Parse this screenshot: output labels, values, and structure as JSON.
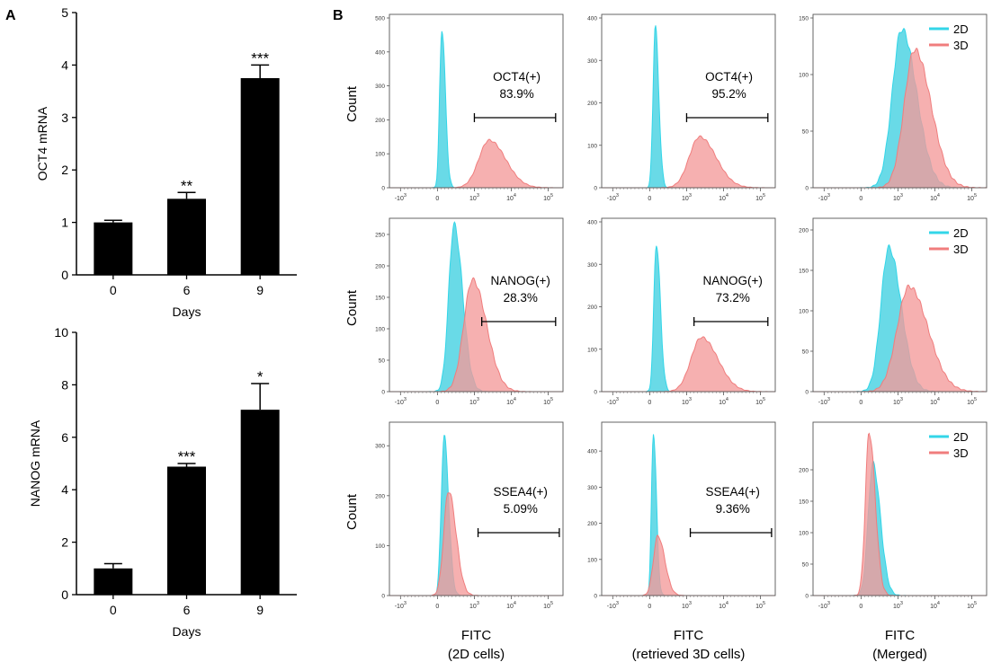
{
  "panel_labels": {
    "a": "A",
    "b": "B"
  },
  "colors": {
    "bar": "#000000",
    "series_2d": "#33d6e8",
    "series_3d": "#f07d7d",
    "fill_2d": "#3fd0e0",
    "fill_3d": "#f49a9a",
    "gate": "#000000"
  },
  "chart_data": [
    {
      "id": "oct4_bar",
      "type": "bar",
      "panel": "A",
      "title": "",
      "xlabel": "Days",
      "ylabel": "OCT4 mRNA",
      "categories": [
        "0",
        "6",
        "9"
      ],
      "values": [
        1.0,
        1.45,
        3.75
      ],
      "errors": [
        0.04,
        0.12,
        0.25
      ],
      "significance": [
        "",
        "**",
        "***"
      ],
      "ylim": [
        0,
        5
      ],
      "yticks": [
        "0",
        "1",
        "2",
        "3",
        "4",
        "5"
      ]
    },
    {
      "id": "nanog_bar",
      "type": "bar",
      "panel": "A",
      "title": "",
      "xlabel": "Days",
      "ylabel": "NANOG mRNA",
      "categories": [
        "0",
        "6",
        "9"
      ],
      "values": [
        1.0,
        4.88,
        7.05
      ],
      "errors": [
        0.18,
        0.12,
        1.0
      ],
      "significance": [
        "",
        "***",
        "*"
      ],
      "ylim": [
        0,
        10
      ],
      "yticks": [
        "0",
        "2",
        "4",
        "6",
        "8",
        "10"
      ]
    }
  ],
  "flow_histograms": {
    "ylabel": "Count",
    "xlabel": "FITC",
    "x_ticks": [
      {
        "base": "-10",
        "exp": "3",
        "v": -1
      },
      {
        "base": "0",
        "exp": "",
        "v": 0
      },
      {
        "base": "10",
        "exp": "3",
        "v": 1
      },
      {
        "base": "10",
        "exp": "4",
        "v": 2
      },
      {
        "base": "10",
        "exp": "5",
        "v": 3
      }
    ],
    "columns": [
      {
        "caption": "FITC",
        "subcaption": "(2D cells)"
      },
      {
        "caption": "FITC",
        "subcaption": "(retrieved 3D cells)"
      },
      {
        "caption": "FITC",
        "subcaption": "(Merged)"
      }
    ],
    "legend": {
      "series_2d": "2D",
      "series_3d": "3D"
    },
    "rows": [
      {
        "marker": "OCT4",
        "plots": [
          {
            "yticks": [
              "0",
              "100",
              "200",
              "300",
              "400",
              "500"
            ],
            "ymax": 500,
            "gate": {
              "label": "OCT4(+)",
              "percent": "83.9%",
              "from": 1.0,
              "to": 3.2
            },
            "peaks": [
              {
                "series": "2D",
                "mu": 0.12,
                "sigma": 0.07,
                "height": 470
              },
              {
                "series": "3D",
                "mu": 1.4,
                "sigma": 0.33,
                "height": 140
              }
            ]
          },
          {
            "yticks": [
              "0",
              "100",
              "200",
              "300",
              "400"
            ],
            "ymax": 400,
            "gate": {
              "label": "OCT4(+)",
              "percent": "95.2%",
              "from": 1.0,
              "to": 3.2
            },
            "peaks": [
              {
                "series": "2D",
                "mu": 0.15,
                "sigma": 0.07,
                "height": 380
              },
              {
                "series": "3D",
                "mu": 1.35,
                "sigma": 0.33,
                "height": 120
              }
            ]
          },
          {
            "yticks": [
              "0",
              "50",
              "100",
              "150"
            ],
            "ymax": 150,
            "legend": true,
            "peaks": [
              {
                "series": "2D",
                "mu": 1.1,
                "sigma": 0.3,
                "height": 140
              },
              {
                "series": "3D",
                "mu": 1.45,
                "sigma": 0.33,
                "height": 122
              }
            ]
          }
        ]
      },
      {
        "marker": "NANOG",
        "plots": [
          {
            "yticks": [
              "0",
              "50",
              "100",
              "150",
              "200",
              "250"
            ],
            "ymax": 270,
            "gate": {
              "label": "NANOG(+)",
              "percent": "28.3%",
              "from": 1.2,
              "to": 3.2
            },
            "peaks": [
              {
                "series": "2D",
                "mu": 0.45,
                "sigma": 0.17,
                "height": 265
              },
              {
                "series": "3D",
                "mu": 0.95,
                "sigma": 0.28,
                "height": 178
              }
            ]
          },
          {
            "yticks": [
              "0",
              "100",
              "200",
              "300",
              "400"
            ],
            "ymax": 400,
            "gate": {
              "label": "NANOG(+)",
              "percent": "73.2%",
              "from": 1.2,
              "to": 3.2
            },
            "peaks": [
              {
                "series": "2D",
                "mu": 0.18,
                "sigma": 0.08,
                "height": 350
              },
              {
                "series": "3D",
                "mu": 1.4,
                "sigma": 0.33,
                "height": 128
              }
            ]
          },
          {
            "yticks": [
              "0",
              "50",
              "100",
              "150",
              "200"
            ],
            "ymax": 210,
            "legend": true,
            "peaks": [
              {
                "series": "2D",
                "mu": 0.75,
                "sigma": 0.25,
                "height": 178
              },
              {
                "series": "3D",
                "mu": 1.3,
                "sigma": 0.38,
                "height": 130
              }
            ]
          }
        ]
      },
      {
        "marker": "SSEA4",
        "plots": [
          {
            "yticks": [
              "0",
              "100",
              "200",
              "300"
            ],
            "ymax": 340,
            "gate": {
              "label": "SSEA4(+)",
              "percent": "5.09%",
              "from": 1.1,
              "to": 3.3
            },
            "peaks": [
              {
                "series": "2D",
                "mu": 0.18,
                "sigma": 0.09,
                "height": 320
              },
              {
                "series": "3D",
                "mu": 0.3,
                "sigma": 0.15,
                "height": 210
              }
            ]
          },
          {
            "yticks": [
              "0",
              "100",
              "200",
              "300",
              "400"
            ],
            "ymax": 470,
            "gate": {
              "label": "SSEA4(+)",
              "percent": "9.36%",
              "from": 1.1,
              "to": 3.3
            },
            "peaks": [
              {
                "series": "2D",
                "mu": 0.1,
                "sigma": 0.06,
                "height": 455
              },
              {
                "series": "3D",
                "mu": 0.22,
                "sigma": 0.14,
                "height": 165
              }
            ]
          },
          {
            "yticks": [
              "0",
              "50",
              "100",
              "150",
              "200"
            ],
            "ymax": 270,
            "legend": true,
            "peaks": [
              {
                "series": "2D",
                "mu": 0.32,
                "sigma": 0.15,
                "height": 210
              },
              {
                "series": "3D",
                "mu": 0.22,
                "sigma": 0.12,
                "height": 260
              }
            ]
          }
        ]
      }
    ]
  }
}
